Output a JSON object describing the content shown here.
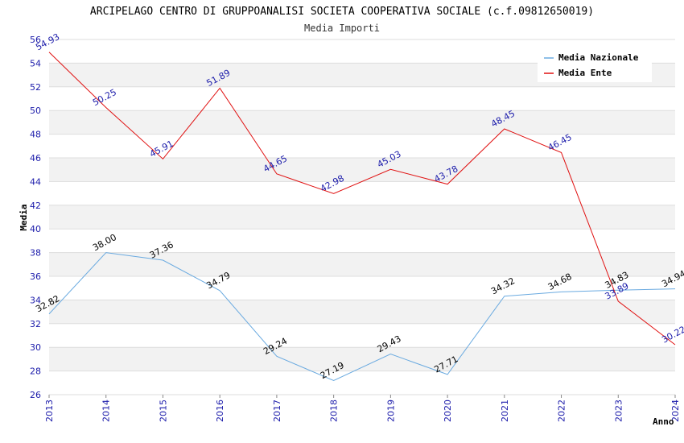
{
  "chart_data": {
    "type": "line",
    "title": "ARCIPELAGO CENTRO DI GRUPPOANALISI SOCIETA COOPERATIVA SOCIALE (c.f.09812650019)",
    "subtitle": "Media Importi",
    "xlabel": "Anno",
    "ylabel": "Media",
    "ylim": [
      26,
      56
    ],
    "ytick_step": 2,
    "x": [
      "2013",
      "2014",
      "2015",
      "2016",
      "2017",
      "2018",
      "2019",
      "2020",
      "2021",
      "2022",
      "2023",
      "2024"
    ],
    "series": [
      {
        "name": "Media Nazionale",
        "color": "#6aaae0",
        "label_color": "#000000",
        "values": [
          32.82,
          38.0,
          37.36,
          34.79,
          29.24,
          27.19,
          29.43,
          27.71,
          34.32,
          34.68,
          34.83,
          34.94
        ],
        "labels": [
          "32.82",
          "38.00",
          "37.36",
          "34.79",
          "29.24",
          "27.19",
          "29.43",
          "27.71",
          "34.32",
          "34.68",
          "34.83",
          "34.94"
        ]
      },
      {
        "name": "Media Ente",
        "color": "#e01010",
        "label_color": "#1a1aaa",
        "values": [
          54.93,
          50.25,
          45.91,
          51.89,
          44.65,
          42.98,
          45.03,
          43.78,
          48.45,
          46.45,
          33.89,
          30.22
        ],
        "labels": [
          "54.93",
          "50.25",
          "45.91",
          "51.89",
          "44.65",
          "42.98",
          "45.03",
          "43.78",
          "48.45",
          "46.45",
          "33.89",
          "30.22"
        ]
      }
    ],
    "legend_position": "top-right",
    "grid": true,
    "band_color": "#f2f2f2",
    "grid_color": "#dddddd",
    "tick_color": "#1a1aaa"
  }
}
